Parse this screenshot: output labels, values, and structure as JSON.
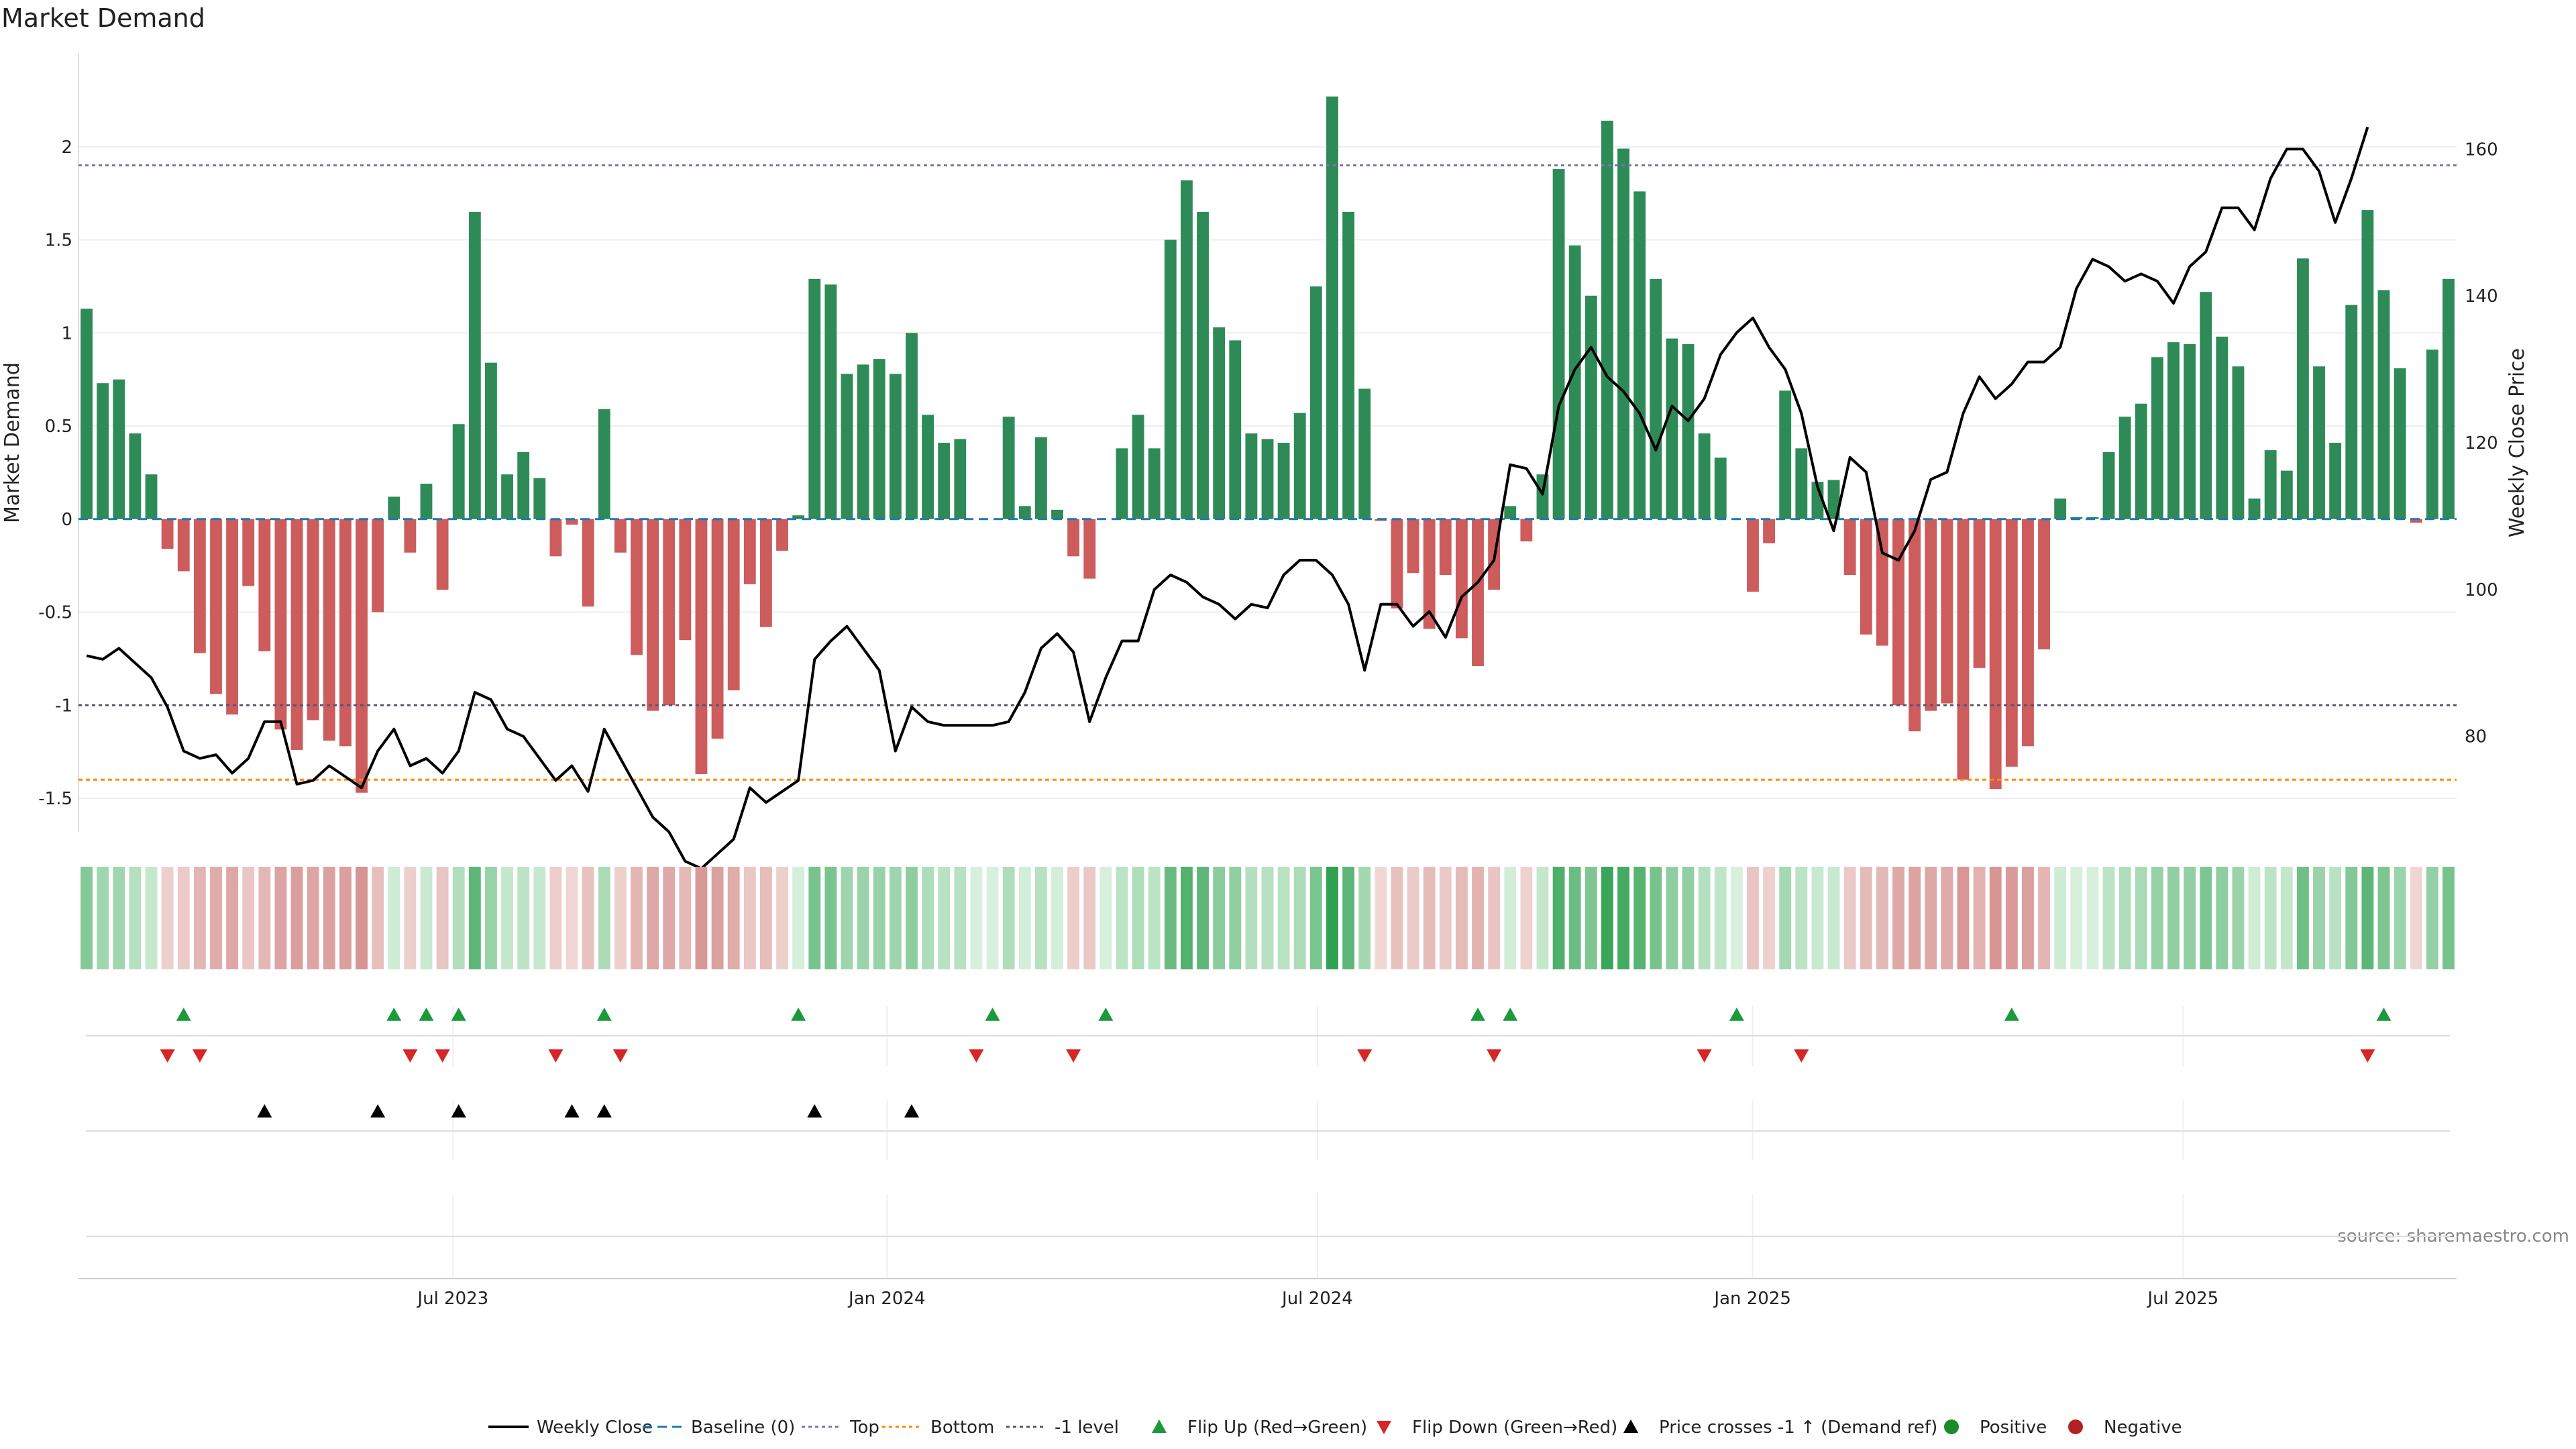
{
  "chart_data": {
    "type": "bar",
    "title": "Market Demand",
    "ylabel": "Market Demand",
    "y2label": "Weekly Close Price",
    "ylim": [
      -1.68,
      2.5
    ],
    "y2lim": [
      67,
      173
    ],
    "yticks": [
      "2",
      "1.5",
      "1",
      "0.5",
      "0",
      "-0.5",
      "-1",
      "-1.5"
    ],
    "y2ticks": [
      "160",
      "140",
      "120",
      "100",
      "80"
    ],
    "xtick_labels": [
      "Jul 2023",
      "Jan 2024",
      "Jul 2024",
      "Jan 2025",
      "Jul 2025"
    ],
    "reference_lines": {
      "top": 1.9,
      "bottom": -1.4,
      "minus_one": -1.0,
      "baseline": 0
    },
    "demand": [
      1.13,
      0.73,
      0.75,
      0.46,
      0.24,
      -0.16,
      -0.28,
      -0.72,
      -0.94,
      -1.05,
      -0.36,
      -0.71,
      -1.13,
      -1.24,
      -1.08,
      -1.19,
      -1.22,
      -1.47,
      -0.5,
      0.12,
      -0.18,
      0.19,
      -0.38,
      0.51,
      1.65,
      0.84,
      0.24,
      0.36,
      0.22,
      -0.2,
      -0.03,
      -0.47,
      0.59,
      -0.18,
      -0.73,
      -1.03,
      -1.0,
      -0.65,
      -1.37,
      -1.18,
      -0.92,
      -0.35,
      -0.58,
      -0.17,
      0.02,
      1.29,
      1.26,
      0.78,
      0.83,
      0.86,
      0.78,
      1.0,
      0.56,
      0.41,
      0.43,
      0.0,
      0.0,
      0.55,
      0.07,
      0.44,
      0.05,
      -0.2,
      -0.32,
      0.0,
      0.38,
      0.56,
      0.38,
      1.5,
      1.82,
      1.65,
      1.03,
      0.96,
      0.46,
      0.43,
      0.41,
      0.57,
      1.25,
      2.27,
      1.65,
      0.7,
      -0.01,
      -0.48,
      -0.29,
      -0.59,
      -0.3,
      -0.64,
      -0.79,
      -0.38,
      0.07,
      -0.12,
      0.24,
      1.88,
      1.47,
      1.2,
      2.14,
      1.99,
      1.76,
      1.29,
      0.97,
      0.94,
      0.46,
      0.33,
      0.0,
      -0.39,
      -0.13,
      0.69,
      0.38,
      0.2,
      0.21,
      -0.3,
      -0.62,
      -0.68,
      -1.0,
      -1.14,
      -1.03,
      -0.99,
      -1.4,
      -0.8,
      -1.45,
      -1.33,
      -1.22,
      -0.7,
      0.11,
      0.01,
      0.01,
      0.36,
      0.55,
      0.62,
      0.87,
      0.95,
      0.94,
      1.22,
      0.98,
      0.82,
      0.11,
      0.37,
      0.26,
      1.4,
      0.82,
      0.41,
      1.15,
      1.66,
      1.23,
      0.81,
      -0.02,
      0.91,
      1.29
    ],
    "close": [
      91,
      90.5,
      92,
      90,
      88,
      84,
      78,
      77,
      77.5,
      75,
      77,
      82,
      82,
      73.5,
      74,
      76,
      74.5,
      73,
      78,
      81,
      76,
      77,
      75,
      78,
      86,
      85,
      81,
      80,
      77,
      74,
      76,
      72.5,
      81,
      77,
      73,
      69,
      67,
      63,
      62,
      64,
      66,
      73,
      71,
      72.5,
      74,
      90.5,
      93,
      95,
      92,
      89,
      78,
      84,
      82,
      81.5,
      81.5,
      81.5,
      81.5,
      82,
      86,
      92,
      94,
      91.5,
      82,
      88,
      93,
      93,
      100,
      102,
      101,
      99,
      98,
      96,
      98,
      97.5,
      102,
      104,
      104,
      102,
      98,
      89,
      98,
      98,
      95,
      97,
      93.5,
      99,
      101,
      104,
      117,
      116.5,
      113,
      125,
      130,
      133,
      129,
      127,
      124,
      119,
      125,
      123,
      126,
      132,
      135,
      137,
      133,
      130,
      124,
      114,
      108,
      118,
      116,
      105,
      104,
      108,
      115,
      116,
      124,
      129,
      126,
      128,
      131,
      131,
      133,
      141,
      145,
      144,
      142,
      143,
      142,
      139,
      144,
      146,
      152,
      152,
      149,
      156,
      160,
      160,
      157,
      150,
      156,
      163
    ],
    "flip_up": [
      6,
      19,
      21,
      23,
      32,
      44,
      56,
      63,
      86,
      88,
      102,
      119,
      142
    ],
    "flip_down": [
      5,
      7,
      20,
      22,
      29,
      33,
      55,
      61,
      79,
      87,
      100,
      106,
      141
    ],
    "cross_up": [
      11,
      18,
      23,
      30,
      32,
      45,
      51
    ],
    "source": "source: sharemaestro.com",
    "legend": [
      {
        "label": "Weekly Close",
        "kind": "line",
        "color": "#000000"
      },
      {
        "label": "Baseline (0)",
        "kind": "dash",
        "color": "#1f77b4"
      },
      {
        "label": "Top",
        "kind": "dot",
        "color": "#7777aa"
      },
      {
        "label": "Bottom",
        "kind": "dot",
        "color": "#ff8c00"
      },
      {
        "label": "-1 level",
        "kind": "dot",
        "color": "#555577"
      },
      {
        "label": "Flip Up (Red→Green)",
        "kind": "tri-up",
        "color": "#1b9a3a"
      },
      {
        "label": "Flip Down (Green→Red)",
        "kind": "tri-down",
        "color": "#d62728"
      },
      {
        "label": "Price crosses -1 ↑ (Demand ref)",
        "kind": "tri-up",
        "color": "#000000"
      },
      {
        "label": "Positive",
        "kind": "dot-marker",
        "color": "#1b8a2a"
      },
      {
        "label": "Negative",
        "kind": "dot-marker",
        "color": "#b22222"
      }
    ],
    "colors": {
      "positive": "#2e8b57",
      "negative": "#cd5c5c",
      "close": "#000000"
    }
  }
}
